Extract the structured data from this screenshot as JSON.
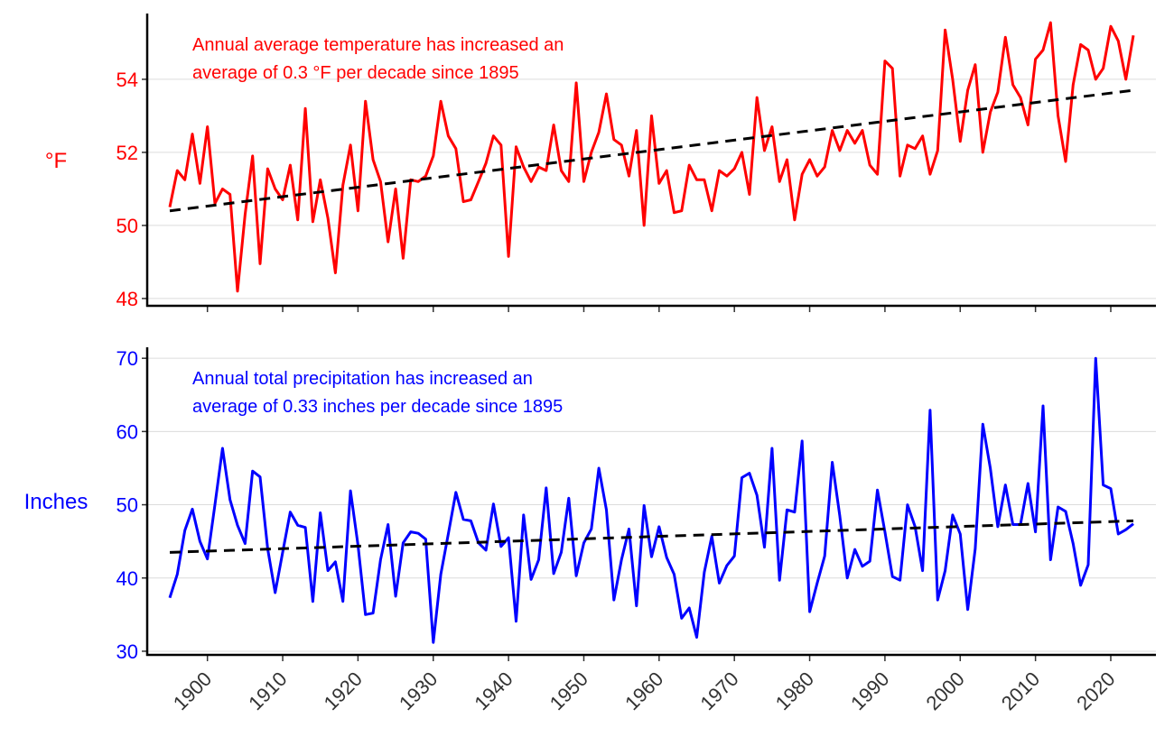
{
  "chart_data": [
    {
      "type": "line",
      "ylabel": "°F",
      "annotation": [
        "Annual average temperature has increased an",
        "average of 0.3 °F per decade since 1895"
      ],
      "color": "#ff0000",
      "trend_color": "#000000",
      "ylim": [
        47.8,
        55.8
      ],
      "yticks": [
        48,
        50,
        52,
        54
      ],
      "x_start": 1895,
      "values": [
        50.5,
        51.5,
        51.25,
        52.5,
        51.15,
        52.7,
        50.6,
        51.0,
        50.85,
        48.2,
        50.3,
        51.9,
        48.95,
        51.55,
        51.0,
        50.7,
        51.65,
        50.15,
        53.2,
        50.1,
        51.25,
        50.2,
        48.7,
        51.1,
        52.2,
        50.4,
        53.4,
        51.8,
        51.2,
        49.55,
        51.0,
        49.1,
        51.25,
        51.2,
        51.35,
        51.9,
        53.4,
        52.45,
        52.1,
        50.65,
        50.7,
        51.2,
        51.7,
        52.45,
        52.2,
        49.15,
        52.15,
        51.6,
        51.2,
        51.6,
        51.5,
        52.75,
        51.5,
        51.2,
        53.9,
        51.2,
        52.0,
        52.55,
        53.6,
        52.35,
        52.2,
        51.35,
        52.6,
        50.0,
        53.0,
        51.15,
        51.5,
        50.35,
        50.4,
        51.65,
        51.25,
        51.25,
        50.4,
        51.5,
        51.35,
        51.55,
        52.0,
        50.85,
        53.5,
        52.05,
        52.7,
        51.2,
        51.8,
        50.15,
        51.4,
        51.8,
        51.35,
        51.6,
        52.6,
        52.05,
        52.6,
        52.25,
        52.6,
        51.65,
        51.4,
        54.5,
        54.3,
        51.35,
        52.2,
        52.1,
        52.45,
        51.4,
        52.05,
        55.35,
        54.0,
        52.3,
        53.7,
        54.4,
        52.0,
        53.1,
        53.65,
        55.15,
        53.85,
        53.5,
        52.75,
        54.55,
        54.8,
        55.55,
        53.0,
        51.75,
        53.85,
        54.95,
        54.8,
        54.0,
        54.3,
        55.45,
        55.05,
        54.0,
        55.2
      ],
      "trend": {
        "start": [
          1895,
          50.4
        ],
        "end": [
          2023,
          53.7
        ]
      }
    },
    {
      "type": "line",
      "ylabel": "Inches",
      "annotation": [
        "Annual total precipitation has increased an",
        "average of 0.33 inches per decade since 1895"
      ],
      "color": "#0000ff",
      "trend_color": "#000000",
      "ylim": [
        29.5,
        71.5
      ],
      "yticks": [
        30,
        40,
        50,
        60,
        70
      ],
      "x_start": 1895,
      "values": [
        37.3,
        40.5,
        46.5,
        49.4,
        45.0,
        42.6,
        50.0,
        57.7,
        50.7,
        47.2,
        44.7,
        54.6,
        53.8,
        44.0,
        38.0,
        43.5,
        49.0,
        47.2,
        46.9,
        36.8,
        48.9,
        41.0,
        42.2,
        36.8,
        51.9,
        44.5,
        35.0,
        35.2,
        42.5,
        47.3,
        37.5,
        44.8,
        46.3,
        46.1,
        45.3,
        31.2,
        40.5,
        46.0,
        51.7,
        48.0,
        47.8,
        44.8,
        43.8,
        50.1,
        44.3,
        45.5,
        34.1,
        48.6,
        39.8,
        42.5,
        52.3,
        40.6,
        43.5,
        50.9,
        40.3,
        44.8,
        46.7,
        55.0,
        49.3,
        37.0,
        42.5,
        46.7,
        36.2,
        49.9,
        42.9,
        47.0,
        42.8,
        40.5,
        34.5,
        35.9,
        31.9,
        40.8,
        45.7,
        39.3,
        41.7,
        43.0,
        53.7,
        54.3,
        51.3,
        44.2,
        57.7,
        39.7,
        49.3,
        49.0,
        58.7,
        35.4,
        39.3,
        43.0,
        55.8,
        48.5,
        40.0,
        43.9,
        41.6,
        42.3,
        52.0,
        46.3,
        40.2,
        39.7,
        50.0,
        47.0,
        41.0,
        62.9,
        37.0,
        41.0,
        48.6,
        46.0,
        35.7,
        44.0,
        61.0,
        55.0,
        47.0,
        52.7,
        47.3,
        47.3,
        52.9,
        46.3,
        63.5,
        42.5,
        49.7,
        49.1,
        44.7,
        39.0,
        41.8,
        70.0,
        52.7,
        52.2,
        46.0,
        46.6,
        47.4
      ],
      "trend": {
        "start": [
          1895,
          43.5
        ],
        "end": [
          2023,
          47.8
        ]
      }
    }
  ],
  "xaxis": {
    "ticks": [
      "1900",
      "1910",
      "1920",
      "1930",
      "1940",
      "1950",
      "1960",
      "1970",
      "1980",
      "1990",
      "2000",
      "2010",
      "2020"
    ],
    "xlim": [
      1892,
      2026
    ]
  }
}
